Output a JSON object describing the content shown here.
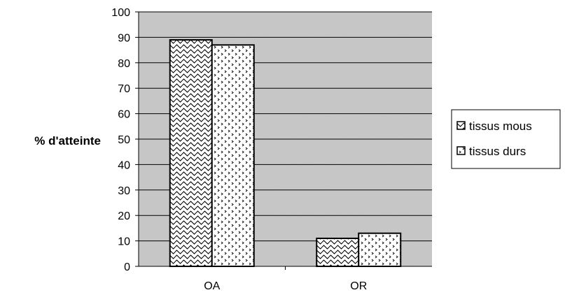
{
  "chart_data": {
    "type": "bar",
    "categories": [
      "OA",
      "OR"
    ],
    "series": [
      {
        "name": "tissus mous",
        "values": [
          89,
          11
        ]
      },
      {
        "name": "tissus durs",
        "values": [
          87,
          13
        ]
      }
    ],
    "title": "",
    "xlabel": "",
    "ylabel": "% d'atteinte",
    "ylim": [
      0,
      100
    ],
    "yticks": [
      0,
      10,
      20,
      30,
      40,
      50,
      60,
      70,
      80,
      90,
      100
    ],
    "grid": true,
    "legend_position": "right",
    "colors": {
      "plot_background": "#c8c8c8",
      "grid": "#000000",
      "bar_fill": "#ffffff",
      "bar_pattern": "#000000"
    }
  }
}
